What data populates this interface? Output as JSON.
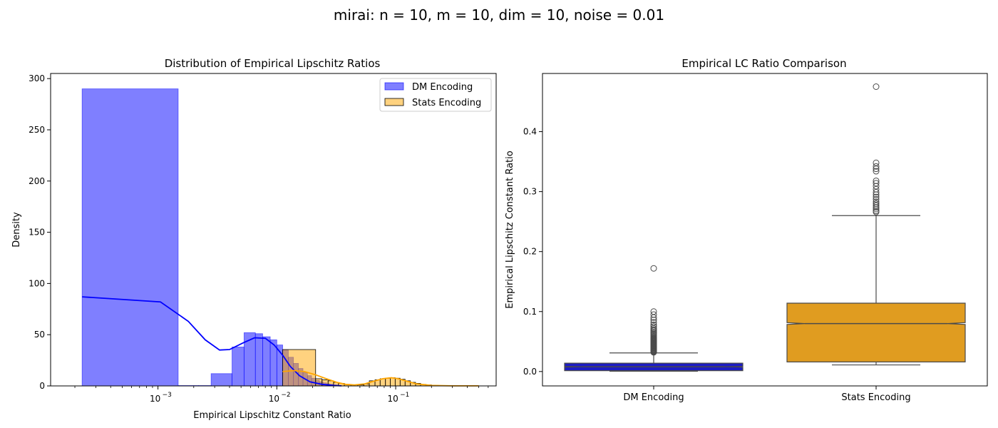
{
  "figure": {
    "suptitle": "mirai: n = 10, m = 10, dim = 10, noise = 0.01"
  },
  "colors": {
    "dm": "#0000ff",
    "stats": "#ffa500",
    "dm_box": "#1d1dc4",
    "stats_box": "#e09c20",
    "median_line": "#4a4a4a"
  },
  "chart_data": [
    {
      "type": "histogram",
      "title": "Distribution of Empirical Lipschitz Ratios",
      "xlabel": "Empirical Lipschitz Constant Ratio",
      "ylabel": "Density",
      "xscale": "log",
      "xlim": [
        0.000125,
        0.7
      ],
      "ylim": [
        0,
        305
      ],
      "xtick_values": [
        0.001,
        0.01,
        0.1
      ],
      "xtick_labels": [
        "10",
        "10",
        "10"
      ],
      "xtick_exponents": [
        "−3",
        "−2",
        "−1"
      ],
      "yticks": [
        0,
        50,
        100,
        150,
        200,
        250,
        300
      ],
      "grid": false,
      "legend": {
        "placement": "top-right",
        "entries": [
          "DM Encoding",
          "Stats Encoding"
        ]
      },
      "series": [
        {
          "name": "DM Encoding",
          "bins": [
            {
              "x0": 0.00023,
              "x1": 0.00148,
              "density": 290
            },
            {
              "x0": 0.00148,
              "x1": 0.0022,
              "density": 0.4
            },
            {
              "x0": 0.0022,
              "x1": 0.0028,
              "density": 0.4
            },
            {
              "x0": 0.0028,
              "x1": 0.0042,
              "density": 12
            },
            {
              "x0": 0.0042,
              "x1": 0.0053,
              "density": 38
            },
            {
              "x0": 0.0053,
              "x1": 0.0066,
              "density": 52
            },
            {
              "x0": 0.0066,
              "x1": 0.0076,
              "density": 51
            },
            {
              "x0": 0.0076,
              "x1": 0.0088,
              "density": 48
            },
            {
              "x0": 0.0088,
              "x1": 0.01,
              "density": 45
            },
            {
              "x0": 0.01,
              "x1": 0.0112,
              "density": 40
            },
            {
              "x0": 0.0112,
              "x1": 0.0125,
              "density": 35
            },
            {
              "x0": 0.0125,
              "x1": 0.0138,
              "density": 28
            },
            {
              "x0": 0.0138,
              "x1": 0.0152,
              "density": 22
            },
            {
              "x0": 0.0152,
              "x1": 0.0166,
              "density": 17
            },
            {
              "x0": 0.0166,
              "x1": 0.0181,
              "density": 13
            },
            {
              "x0": 0.0181,
              "x1": 0.0196,
              "density": 10
            },
            {
              "x0": 0.0196,
              "x1": 0.0212,
              "density": 7.5
            },
            {
              "x0": 0.0212,
              "x1": 0.0228,
              "density": 5.5
            },
            {
              "x0": 0.0228,
              "x1": 0.0245,
              "density": 4
            },
            {
              "x0": 0.0245,
              "x1": 0.0262,
              "density": 3
            },
            {
              "x0": 0.0262,
              "x1": 0.028,
              "density": 2
            },
            {
              "x0": 0.028,
              "x1": 0.0298,
              "density": 1.5
            },
            {
              "x0": 0.0298,
              "x1": 0.0318,
              "density": 1
            }
          ],
          "kde": {
            "x": [
              0.00023,
              0.00105,
              0.0018,
              0.0025,
              0.0033,
              0.004,
              0.0052,
              0.0065,
              0.008,
              0.0095,
              0.0112,
              0.013,
              0.0155,
              0.019,
              0.024,
              0.03,
              0.035
            ],
            "y": [
              87,
              82,
              63,
              45,
              35,
              35.5,
              42,
              47,
              46.5,
              40,
              30,
              19,
              10,
              4,
              1.5,
              0.5,
              0.1
            ]
          }
        },
        {
          "name": "Stats Encoding",
          "bins": [
            {
              "x0": 0.0112,
              "x1": 0.0212,
              "density": 35.5
            },
            {
              "x0": 0.0212,
              "x1": 0.024,
              "density": 7
            },
            {
              "x0": 0.024,
              "x1": 0.027,
              "density": 6
            },
            {
              "x0": 0.027,
              "x1": 0.03,
              "density": 5
            },
            {
              "x0": 0.03,
              "x1": 0.033,
              "density": 3.5
            },
            {
              "x0": 0.033,
              "x1": 0.037,
              "density": 2.5
            },
            {
              "x0": 0.037,
              "x1": 0.042,
              "density": 1.5
            },
            {
              "x0": 0.042,
              "x1": 0.048,
              "density": 1
            },
            {
              "x0": 0.048,
              "x1": 0.054,
              "density": 1
            },
            {
              "x0": 0.054,
              "x1": 0.06,
              "density": 2
            },
            {
              "x0": 0.06,
              "x1": 0.067,
              "density": 5
            },
            {
              "x0": 0.067,
              "x1": 0.074,
              "density": 6
            },
            {
              "x0": 0.074,
              "x1": 0.082,
              "density": 7
            },
            {
              "x0": 0.082,
              "x1": 0.09,
              "density": 7.5
            },
            {
              "x0": 0.09,
              "x1": 0.099,
              "density": 8
            },
            {
              "x0": 0.099,
              "x1": 0.109,
              "density": 7.5
            },
            {
              "x0": 0.109,
              "x1": 0.12,
              "density": 6.5
            },
            {
              "x0": 0.12,
              "x1": 0.133,
              "density": 5
            },
            {
              "x0": 0.133,
              "x1": 0.147,
              "density": 3.5
            },
            {
              "x0": 0.147,
              "x1": 0.162,
              "density": 2.5
            },
            {
              "x0": 0.162,
              "x1": 0.18,
              "density": 1.5
            },
            {
              "x0": 0.18,
              "x1": 0.2,
              "density": 1
            },
            {
              "x0": 0.2,
              "x1": 0.23,
              "density": 0.5
            },
            {
              "x0": 0.23,
              "x1": 0.27,
              "density": 0.3
            }
          ],
          "kde": {
            "x": [
              0.0112,
              0.014,
              0.017,
              0.021,
              0.026,
              0.032,
              0.038,
              0.045,
              0.055,
              0.065,
              0.078,
              0.092,
              0.105,
              0.125,
              0.15,
              0.2,
              0.3,
              0.5
            ],
            "y": [
              14,
              15,
              14,
              11,
              7,
              3.5,
              1.5,
              1,
              2,
              4.5,
              7,
              8,
              7,
              4.5,
              2,
              0.5,
              0.1,
              0.05
            ]
          }
        }
      ]
    },
    {
      "type": "box",
      "title": "Empirical LC Ratio Comparison",
      "xlabel": "",
      "ylabel": "Empirical Lipschitz Constant Ratio",
      "ylim": [
        -0.024,
        0.497
      ],
      "yticks": [
        0.0,
        0.1,
        0.2,
        0.3,
        0.4
      ],
      "ytick_labels": [
        "0.0",
        "0.1",
        "0.2",
        "0.3",
        "0.4"
      ],
      "categories": [
        "DM Encoding",
        "Stats Encoding"
      ],
      "notched": true,
      "boxes": [
        {
          "name": "DM Encoding",
          "q1": 0.0015,
          "median": 0.008,
          "q3": 0.014,
          "whisker_low": 0.0005,
          "whisker_high": 0.031,
          "notch": [
            0.0075,
            0.0085
          ],
          "outliers": [
            0.032,
            0.033,
            0.034,
            0.035,
            0.036,
            0.037,
            0.038,
            0.039,
            0.04,
            0.041,
            0.042,
            0.043,
            0.044,
            0.045,
            0.046,
            0.047,
            0.048,
            0.049,
            0.05,
            0.051,
            0.052,
            0.053,
            0.054,
            0.055,
            0.056,
            0.058,
            0.06,
            0.062,
            0.064,
            0.066,
            0.068,
            0.07,
            0.072,
            0.075,
            0.078,
            0.082,
            0.086,
            0.09,
            0.095,
            0.1,
            0.172
          ]
        },
        {
          "name": "Stats Encoding",
          "q1": 0.016,
          "median": 0.08,
          "q3": 0.114,
          "whisker_low": 0.011,
          "whisker_high": 0.26,
          "notch": [
            0.0785,
            0.0815
          ],
          "outliers": [
            0.266,
            0.268,
            0.271,
            0.274,
            0.277,
            0.28,
            0.283,
            0.287,
            0.291,
            0.295,
            0.299,
            0.304,
            0.309,
            0.314,
            0.318,
            0.334,
            0.338,
            0.342,
            0.348,
            0.475
          ]
        }
      ]
    }
  ]
}
